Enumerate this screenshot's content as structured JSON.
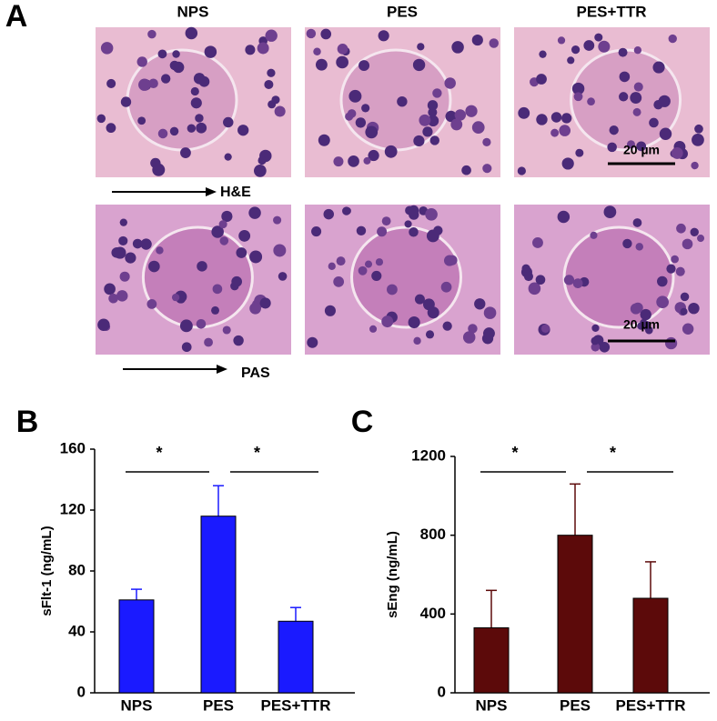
{
  "figure_a": {
    "panel_label": "A",
    "columns": [
      "NPS",
      "PES",
      "PES+TTR"
    ],
    "rows": [
      "H&E",
      "PAS"
    ],
    "scale_bar": "20 µm"
  },
  "chart_data": [
    {
      "type": "bar",
      "panel_label": "B",
      "y_label": "sFlt-1 (ng/mL)",
      "categories": [
        "NPS",
        "PES",
        "PES+TTR"
      ],
      "values": [
        61,
        116,
        47
      ],
      "errors": [
        7,
        20,
        9
      ],
      "color": "#1a1aff",
      "ylim": [
        0,
        160
      ],
      "yticks": [
        0,
        40,
        80,
        120,
        160
      ],
      "annotations": [
        "*",
        "*"
      ]
    },
    {
      "type": "bar",
      "panel_label": "C",
      "y_label": "sEng (ng/mL)",
      "categories": [
        "NPS",
        "PES",
        "PES+TTR"
      ],
      "values": [
        330,
        800,
        480
      ],
      "errors": [
        190,
        260,
        185
      ],
      "color": "#5c0a0a",
      "ylim": [
        0,
        1200
      ],
      "yticks": [
        0,
        400,
        800,
        1200
      ],
      "annotations": [
        "*",
        "*"
      ]
    }
  ]
}
